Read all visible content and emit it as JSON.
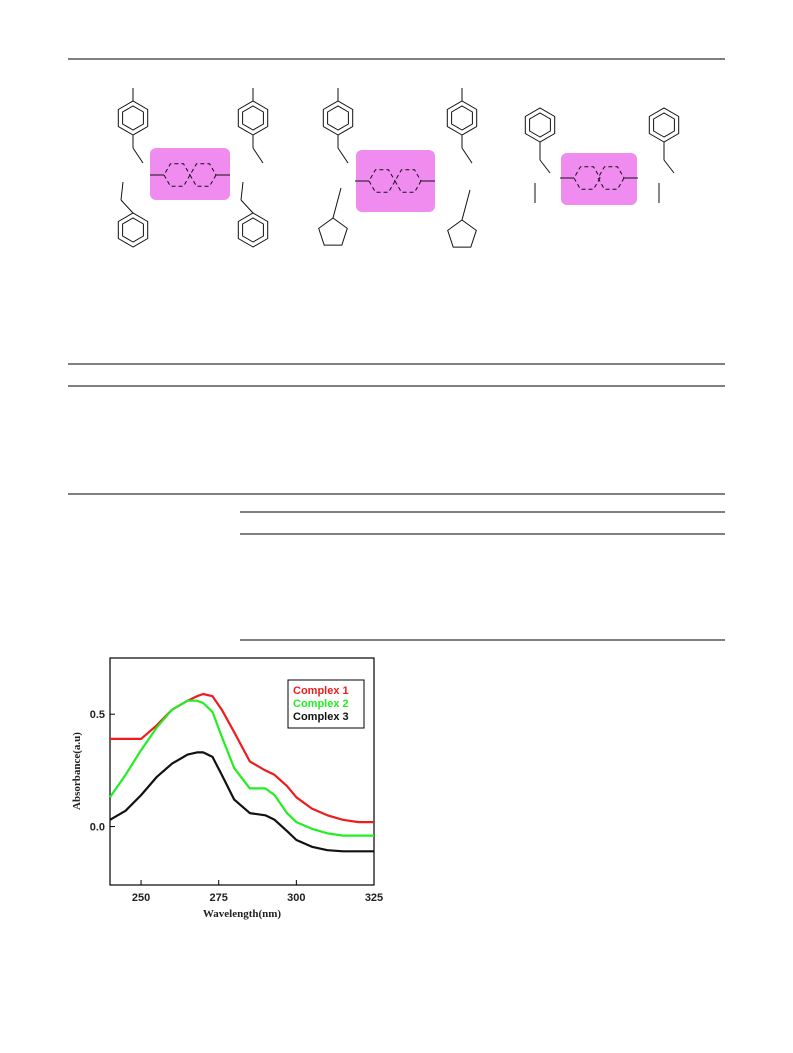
{
  "chart_data": {
    "type": "line",
    "x_label": "Wavelength(nm)",
    "y_label": "Absorbance(a.u)",
    "x": [
      240,
      245,
      250,
      255,
      260,
      265,
      268,
      270,
      273,
      276,
      280,
      285,
      290,
      293,
      297,
      300,
      305,
      310,
      315,
      320,
      325
    ],
    "series": [
      {
        "name": "Complex 1",
        "color": "#ee1c1c",
        "values": [
          0.39,
          0.39,
          0.39,
          0.45,
          0.52,
          0.56,
          0.58,
          0.59,
          0.58,
          0.52,
          0.42,
          0.29,
          0.25,
          0.23,
          0.18,
          0.13,
          0.08,
          0.05,
          0.03,
          0.02,
          0.02
        ]
      },
      {
        "name": "Complex 2",
        "color": "#22ee22",
        "values": [
          0.13,
          0.23,
          0.34,
          0.44,
          0.52,
          0.56,
          0.56,
          0.55,
          0.51,
          0.4,
          0.26,
          0.17,
          0.17,
          0.14,
          0.06,
          0.02,
          -0.01,
          -0.03,
          -0.04,
          -0.04,
          -0.04
        ]
      },
      {
        "name": "Complex 3",
        "color": "#111111",
        "values": [
          0.03,
          0.07,
          0.14,
          0.22,
          0.28,
          0.32,
          0.33,
          0.33,
          0.31,
          0.23,
          0.12,
          0.06,
          0.05,
          0.03,
          -0.02,
          -0.06,
          -0.09,
          -0.105,
          -0.11,
          -0.11,
          -0.11
        ]
      }
    ],
    "xlim": [
      240,
      325
    ],
    "ylim": [
      -0.26,
      0.75
    ],
    "xticks": [
      250,
      275,
      300,
      325
    ],
    "yticks": [
      {
        "value": 0,
        "label": "0.0"
      },
      0.5
    ],
    "legend": "upper right"
  }
}
